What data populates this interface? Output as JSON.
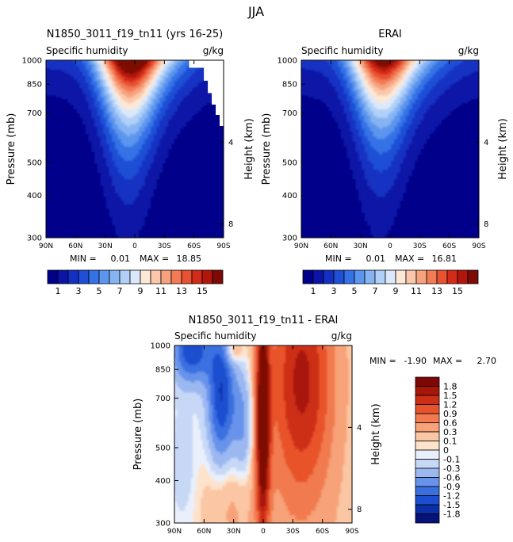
{
  "page_title": "JJA",
  "colors": {
    "humidity_scale": [
      "#00008b",
      "#0a14a6",
      "#1430c2",
      "#1f4fd6",
      "#3572e6",
      "#5c95ee",
      "#86b4f3",
      "#b1d0f8",
      "#dbe8fb",
      "#fde8d6",
      "#fbc7ab",
      "#f7a27e",
      "#f27a55",
      "#e85131",
      "#d42a18",
      "#b0160c",
      "#7d0a05"
    ],
    "diff_scale": [
      "#06127a",
      "#0a2fa8",
      "#1b4fd0",
      "#3a6fe0",
      "#6793ea",
      "#9bb8f1",
      "#c7d8f7",
      "#eaf0fb",
      "#fde3cc",
      "#fbc6a3",
      "#f7a278",
      "#f27a4f",
      "#e8532c",
      "#cc2e16",
      "#a8160a",
      "#7d0805"
    ]
  },
  "chart_data": [
    {
      "type": "contour",
      "title": "N1850_3011_f19_tn11 (yrs 16-25)",
      "subtitle_left": "Specific humidity",
      "subtitle_right": "g/kg",
      "xlabel": "",
      "ylabel": "Pressure (mb)",
      "ylabel_right": "Height (km)",
      "x_ticks": [
        "90N",
        "60N",
        "30N",
        "0",
        "30S",
        "60S",
        "90S"
      ],
      "y_ticks": [
        300,
        400,
        500,
        700,
        850,
        1000
      ],
      "y_ticks_right": [
        8,
        4
      ],
      "xlim": [
        90,
        -90
      ],
      "ylim": [
        1000,
        300
      ],
      "stats": {
        "min_label": "MIN =",
        "min": "0.01",
        "max_label": "MAX =",
        "max": "18.85"
      },
      "peak_value": 18.85,
      "peak_latitude": 5,
      "colorbar_ticks": [
        "1",
        "3",
        "5",
        "7",
        "9",
        "11",
        "13",
        "15"
      ]
    },
    {
      "type": "contour",
      "title": "ERAI",
      "subtitle_left": "Specific humidity",
      "subtitle_right": "g/kg",
      "xlabel": "",
      "ylabel": "Pressure (mb)",
      "ylabel_right": "Height (km)",
      "x_ticks": [
        "90N",
        "60N",
        "30N",
        "0",
        "30S",
        "60S",
        "90S"
      ],
      "y_ticks": [
        300,
        400,
        500,
        700,
        850,
        1000
      ],
      "y_ticks_right": [
        8,
        4
      ],
      "xlim": [
        90,
        -90
      ],
      "ylim": [
        1000,
        300
      ],
      "stats": {
        "min_label": "MIN =",
        "min": "0.01",
        "max_label": "MAX =",
        "max": "16.81"
      },
      "peak_value": 16.81,
      "peak_latitude": 8,
      "colorbar_ticks": [
        "1",
        "3",
        "5",
        "7",
        "9",
        "11",
        "13",
        "15"
      ]
    },
    {
      "type": "contour",
      "title": "N1850_3011_f19_tn11 - ERAI",
      "subtitle_left": "Specific humidity",
      "subtitle_right": "g/kg",
      "xlabel": "",
      "ylabel": "Pressure (mb)",
      "ylabel_right": "Height (km)",
      "x_ticks": [
        "90N",
        "60N",
        "30N",
        "0",
        "30S",
        "60S",
        "90S"
      ],
      "y_ticks": [
        300,
        400,
        500,
        700,
        850,
        1000
      ],
      "y_ticks_right": [
        8,
        4
      ],
      "xlim": [
        90,
        -90
      ],
      "ylim": [
        1000,
        300
      ],
      "stats": {
        "min_label": "MIN =",
        "min": "-1.90",
        "max_label": "MAX =",
        "max": "2.70"
      },
      "colorbar_ticks": [
        "1.8",
        "1.5",
        "1.2",
        "0.9",
        "0.6",
        "0.3",
        "0.1",
        "0",
        "-0.1",
        "-0.3",
        "-0.6",
        "-0.9",
        "-1.2",
        "-1.5",
        "-1.8"
      ]
    }
  ]
}
